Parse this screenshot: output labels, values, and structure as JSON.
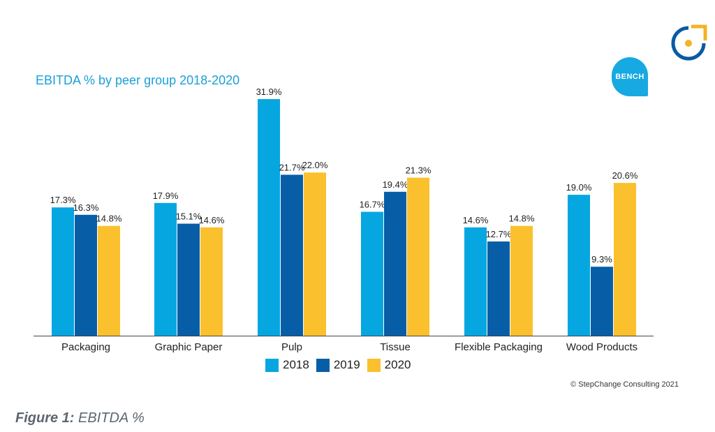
{
  "figure": {
    "caption_label": "Figure 1:",
    "caption_text": " EBITDA %",
    "copyright": "© StepChange Consulting 2021",
    "brand_badge": "BENCH"
  },
  "colors": {
    "title": "#1aa0d8",
    "series_2018": "#06a7e0",
    "series_2019": "#075ea6",
    "series_2020": "#fbc02d",
    "axis": "#444444"
  },
  "icons": {
    "logo": "stepchange-logo-icon"
  },
  "chart_data": {
    "type": "bar",
    "title": "EBITDA % by peer group 2018-2020",
    "xlabel": "",
    "ylabel": "",
    "ylim": [
      0,
      32
    ],
    "grid": false,
    "legend_position": "bottom",
    "categories": [
      "Packaging",
      "Graphic Paper",
      "Pulp",
      "Tissue",
      "Flexible Packaging",
      "Wood Products"
    ],
    "series": [
      {
        "name": "2018",
        "color": "#06a7e0",
        "values": [
          17.3,
          17.9,
          31.9,
          16.7,
          14.6,
          19.0
        ],
        "labels": [
          "17.3%",
          "17.9%",
          "31.9%",
          "16.7%",
          "14.6%",
          "19.0%"
        ]
      },
      {
        "name": "2019",
        "color": "#075ea6",
        "values": [
          16.3,
          15.1,
          21.7,
          19.4,
          12.7,
          9.3
        ],
        "labels": [
          "16.3%",
          "15.1%",
          "21.7%",
          "19.4%",
          "12.7%",
          "9.3%"
        ]
      },
      {
        "name": "2020",
        "color": "#fbc02d",
        "values": [
          14.8,
          14.6,
          22.0,
          21.3,
          14.8,
          20.6
        ],
        "labels": [
          "14.8%",
          "14.6%",
          "22.0%",
          "21.3%",
          "14.8%",
          "20.6%"
        ]
      }
    ]
  }
}
